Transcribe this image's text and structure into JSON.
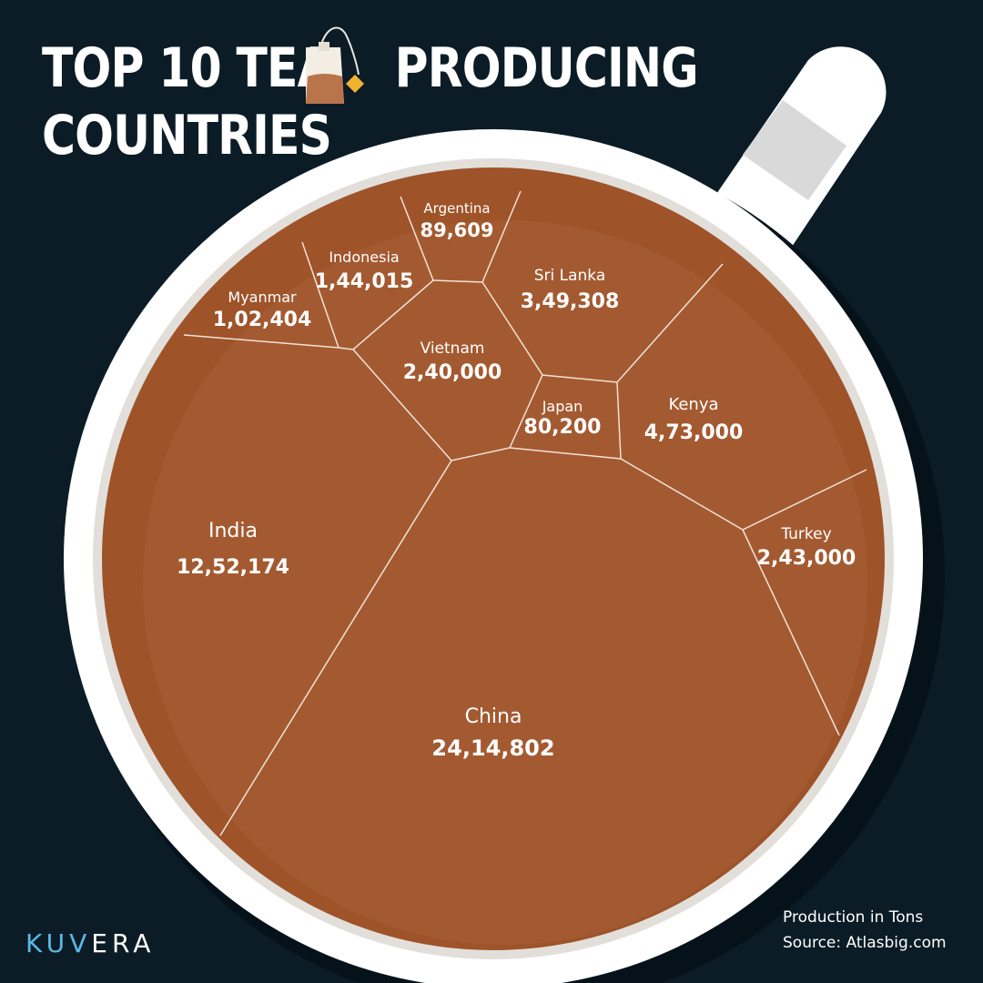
{
  "title": {
    "line1_part1": "TOP 10 TEA",
    "line1_part2": "PRODUCING",
    "line2": "COUNTRIES"
  },
  "logo": {
    "part1": "KUV",
    "part2": "ERA"
  },
  "footnote": {
    "units": "Production in Tons",
    "source": "Source: Atlasbig.com"
  },
  "colors": {
    "background": "#0b1c26",
    "tea": "#9e5329",
    "cup": "#ffffff",
    "cell_border": "#f1e2d6"
  },
  "icons": {
    "title_icon": "tea-bag-icon"
  },
  "chart_data": {
    "type": "voronoi-treemap",
    "categories": [
      "China",
      "India",
      "Kenya",
      "Sri Lanka",
      "Turkey",
      "Vietnam",
      "Indonesia",
      "Myanmar",
      "Argentina",
      "Japan"
    ],
    "values": [
      2414802,
      1252174,
      473000,
      349308,
      243000,
      240000,
      144015,
      102404,
      89609,
      80200
    ],
    "value_labels": [
      "24,14,802",
      "12,52,174",
      "4,73,000",
      "3,49,308",
      "2,43,000",
      "2,40,000",
      "1,44,015",
      "1,02,404",
      "89,609",
      "80,200"
    ]
  }
}
